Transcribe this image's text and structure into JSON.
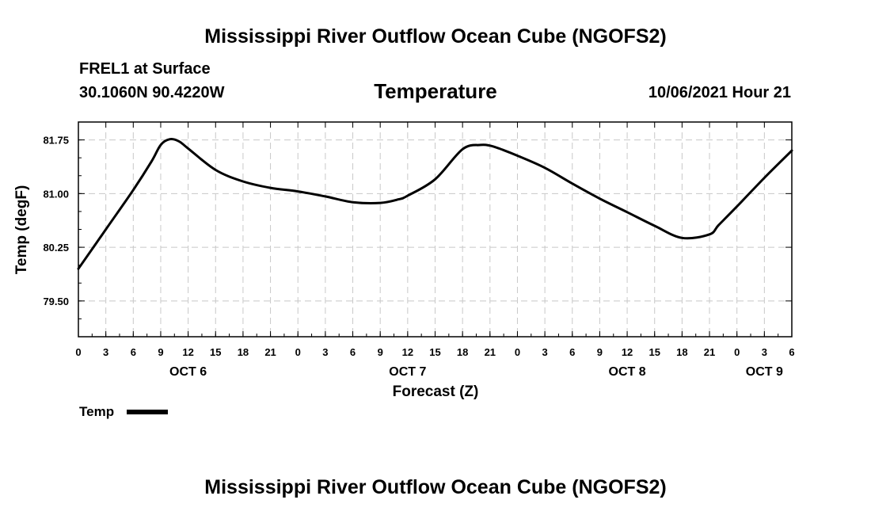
{
  "header": {
    "title_top": "Mississippi River Outflow Ocean Cube (NGOFS2)",
    "title_bottom": "Mississippi River Outflow Ocean Cube (NGOFS2)",
    "station": "FREL1 at Surface",
    "coords": "30.1060N  90.4220W",
    "variable": "Temperature",
    "datetime": "10/06/2021 Hour 21"
  },
  "legend": {
    "label": "Temp"
  },
  "chart_data": {
    "type": "line",
    "title": "Temperature",
    "xlabel": "Forecast (Z)",
    "ylabel": "Temp (degF)",
    "xlim": [
      0,
      78
    ],
    "ylim": [
      79.0,
      82.0
    ],
    "yticks": [
      79.5,
      80.25,
      81.0,
      81.75
    ],
    "ytick_labels": [
      "79.50",
      "80.25",
      "81.00",
      "81.75"
    ],
    "xtick_hours": [
      0,
      3,
      6,
      9,
      12,
      15,
      18,
      21,
      24,
      27,
      30,
      33,
      36,
      39,
      42,
      45,
      48,
      51,
      54,
      57,
      60,
      63,
      66,
      69,
      72,
      75,
      78
    ],
    "xtick_labels": [
      "0",
      "3",
      "6",
      "9",
      "12",
      "15",
      "18",
      "21",
      "0",
      "3",
      "6",
      "9",
      "12",
      "15",
      "18",
      "21",
      "0",
      "3",
      "6",
      "9",
      "12",
      "15",
      "18",
      "21",
      "0",
      "3",
      "6"
    ],
    "day_labels": [
      {
        "label": "OCT 6",
        "hour": 12
      },
      {
        "label": "OCT 7",
        "hour": 36
      },
      {
        "label": "OCT 8",
        "hour": 60
      },
      {
        "label": "OCT 9",
        "hour": 75
      }
    ],
    "grid": true,
    "legend_position": "bottom-left",
    "series": [
      {
        "name": "Temp",
        "x": [
          0,
          3,
          6,
          8,
          9,
          10,
          11,
          12,
          15,
          18,
          21,
          24,
          27,
          30,
          33,
          35,
          36,
          39,
          42,
          44,
          45,
          46,
          48,
          51,
          54,
          57,
          60,
          63,
          66,
          69,
          70,
          72,
          75,
          78
        ],
        "values": [
          79.95,
          80.5,
          81.05,
          81.45,
          81.68,
          81.76,
          81.73,
          81.63,
          81.33,
          81.17,
          81.08,
          81.03,
          80.96,
          80.88,
          80.87,
          80.92,
          80.97,
          81.2,
          81.62,
          81.68,
          81.67,
          81.63,
          81.53,
          81.36,
          81.14,
          80.93,
          80.74,
          80.55,
          80.38,
          80.43,
          80.56,
          80.82,
          81.22,
          81.6
        ]
      }
    ]
  }
}
